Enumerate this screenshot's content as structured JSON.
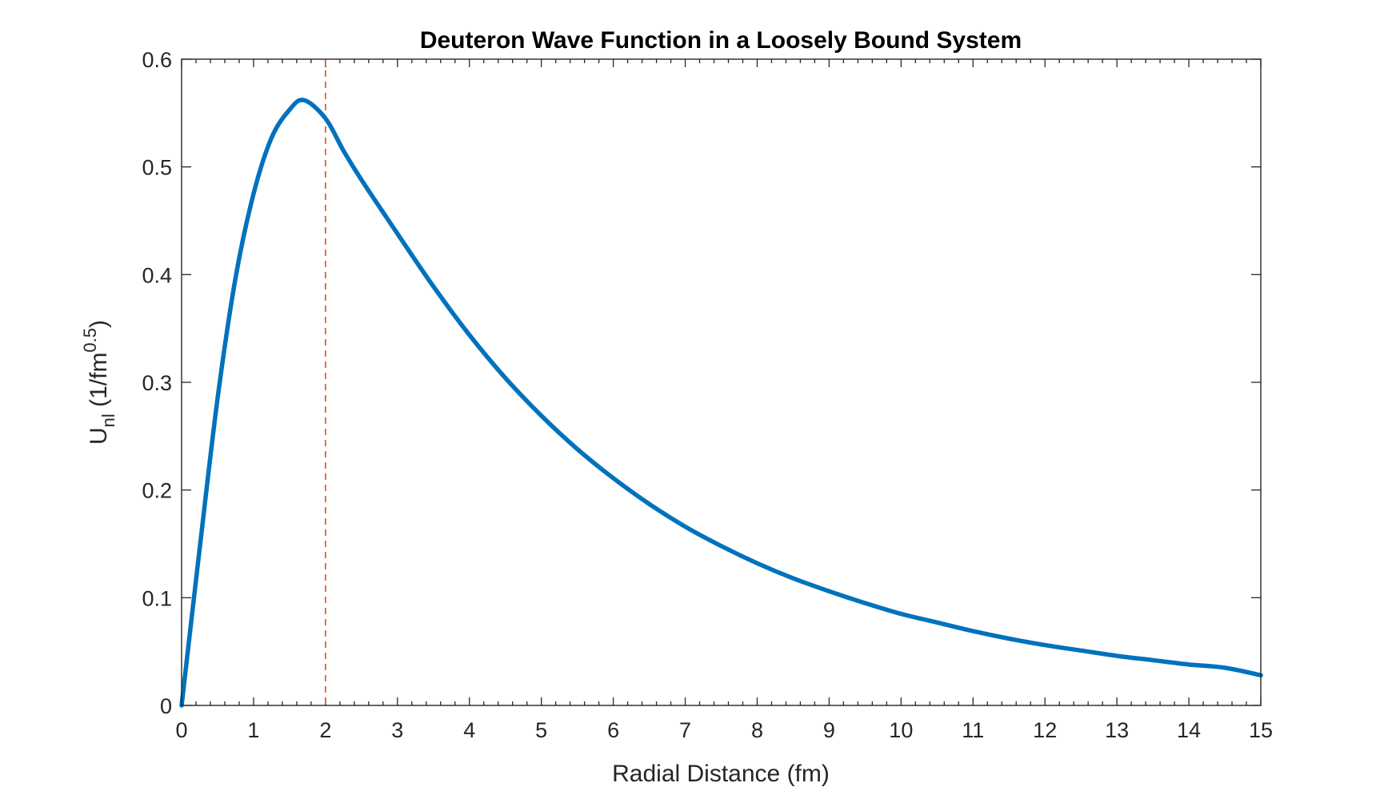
{
  "chart_data": {
    "type": "line",
    "title": "Deuteron Wave Function in a Loosely Bound System",
    "xlabel": "Radial Distance (fm)",
    "ylabel": {
      "base": "U",
      "subscript": "nl",
      "unit_prefix": " (1/fm",
      "superscript": "0.5",
      "unit_suffix": ")"
    },
    "xlim": [
      0,
      15
    ],
    "ylim": [
      0,
      0.6
    ],
    "xticks": [
      "0",
      "1",
      "2",
      "3",
      "4",
      "5",
      "6",
      "7",
      "8",
      "9",
      "10",
      "11",
      "12",
      "13",
      "14",
      "15"
    ],
    "yticks": [
      "0",
      "0.1",
      "0.2",
      "0.3",
      "0.4",
      "0.5",
      "0.6"
    ],
    "grid": false,
    "colors": {
      "curve": "#0072BD",
      "marker_line": "#D95319",
      "axes": "#262626"
    },
    "series": [
      {
        "x": [
          0,
          0.25,
          0.5,
          0.75,
          1.0,
          1.25,
          1.5,
          1.7,
          2.0,
          2.25,
          2.5,
          3.0,
          3.5,
          4.0,
          4.5,
          5.0,
          5.5,
          6.0,
          6.5,
          7.0,
          7.5,
          8.0,
          8.5,
          9.0,
          9.5,
          10.0,
          10.5,
          11.0,
          11.5,
          12.0,
          12.5,
          13.0,
          13.5,
          14.0,
          14.5,
          15.0
        ],
        "y": [
          0,
          0.145,
          0.285,
          0.397,
          0.475,
          0.527,
          0.553,
          0.562,
          0.545,
          0.515,
          0.488,
          0.438,
          0.389,
          0.344,
          0.304,
          0.269,
          0.238,
          0.211,
          0.187,
          0.166,
          0.148,
          0.132,
          0.118,
          0.106,
          0.095,
          0.085,
          0.077,
          0.069,
          0.062,
          0.056,
          0.051,
          0.046,
          0.042,
          0.038,
          0.035,
          0.028
        ]
      }
    ],
    "vertical_line": {
      "x": 2,
      "style": "dashed"
    }
  }
}
